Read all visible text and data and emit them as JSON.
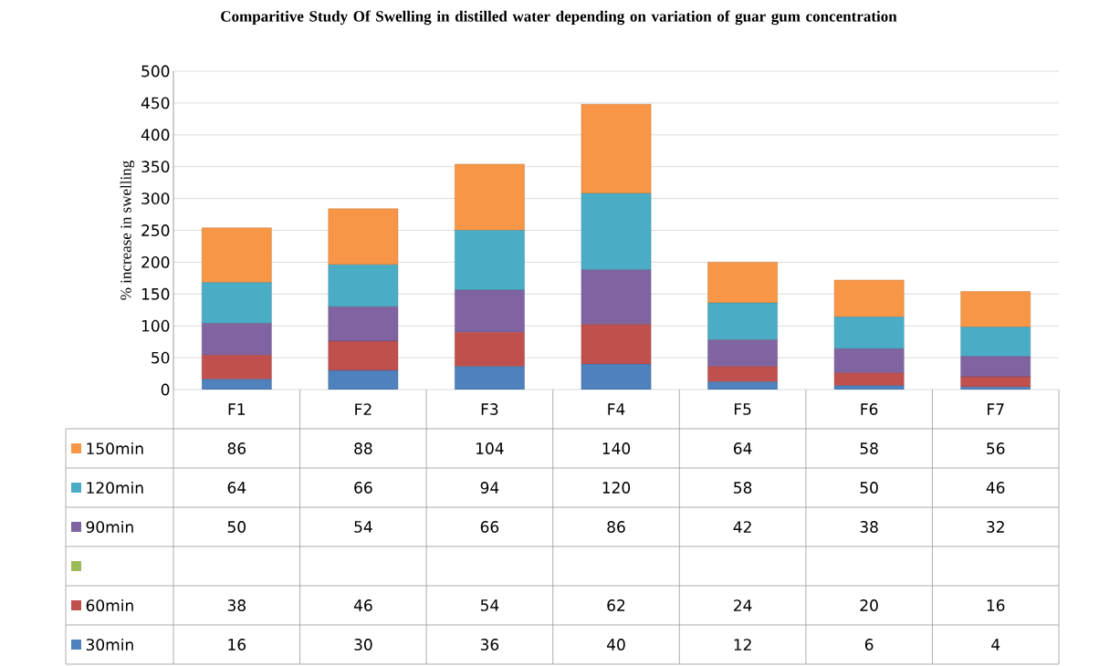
{
  "chart_data": {
    "type": "bar",
    "stacked": true,
    "title": "Comparitive Study Of Swelling in distilled water depending on variation of guar gum concentration",
    "ylabel": "% increase in swelling",
    "categories": [
      "F1",
      "F2",
      "F3",
      "F4",
      "F5",
      "F6",
      "F7"
    ],
    "series": [
      {
        "name": "30min",
        "color": "#4f81bd",
        "values": [
          16,
          30,
          36,
          40,
          12,
          6,
          4
        ]
      },
      {
        "name": "60min",
        "color": "#c0504d",
        "values": [
          38,
          46,
          54,
          62,
          24,
          20,
          16
        ]
      },
      {
        "color": "#9bbb59",
        "values": [
          null,
          null,
          null,
          null,
          null,
          null,
          null
        ]
      },
      {
        "name": "90min",
        "color": "#8064a2",
        "values": [
          50,
          54,
          66,
          86,
          42,
          38,
          32
        ]
      },
      {
        "name": "120min",
        "color": "#4bacc6",
        "values": [
          64,
          66,
          94,
          120,
          58,
          50,
          46
        ]
      },
      {
        "name": "150min",
        "color": "#f79646",
        "values": [
          86,
          88,
          104,
          140,
          64,
          58,
          56
        ]
      }
    ],
    "ylim": [
      0,
      500
    ],
    "yticks": [
      0,
      50,
      100,
      150,
      200,
      250,
      300,
      350,
      400,
      450,
      500
    ],
    "grid": "y",
    "legend": "bottom",
    "data_labels": true
  }
}
